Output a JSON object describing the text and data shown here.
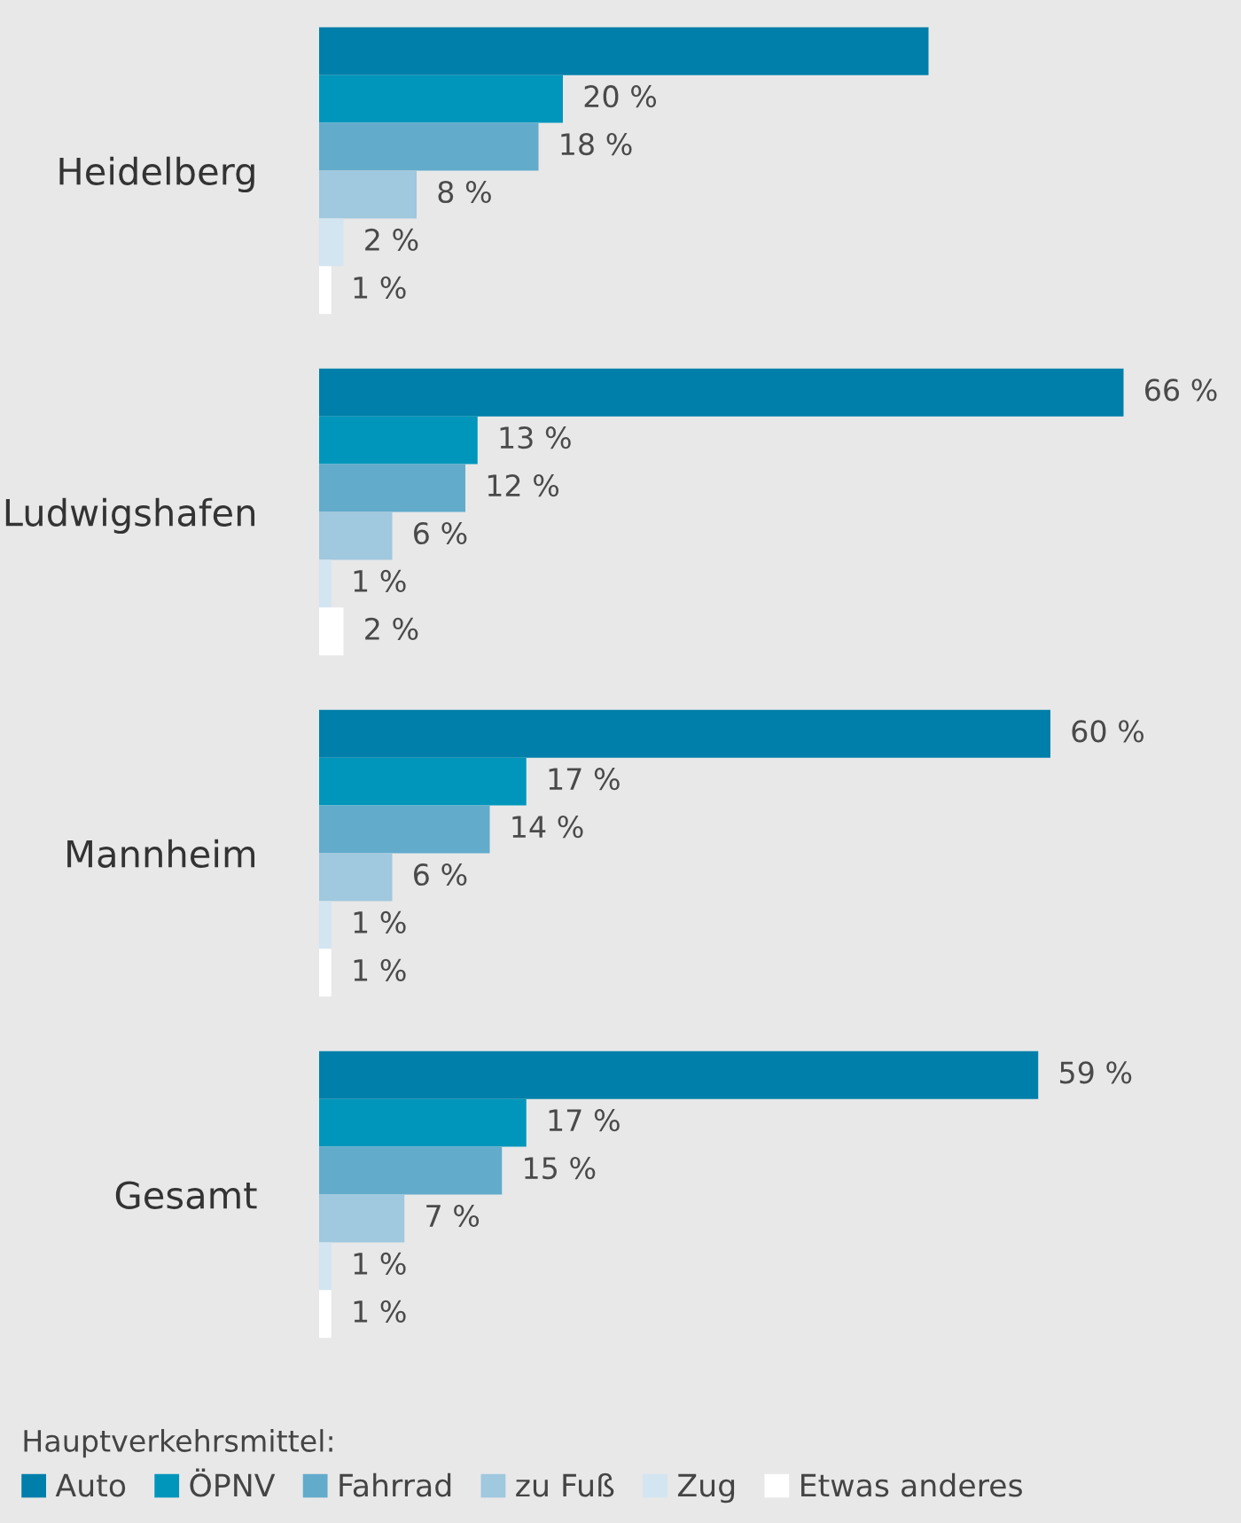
{
  "chart_data": {
    "type": "bar",
    "orientation": "horizontal",
    "categories": [
      "Heidelberg",
      "Ludwigshafen",
      "Mannheim",
      "Gesamt"
    ],
    "legend": "bottom",
    "legend_title": "Hauptverkehrsmittel:",
    "grid": false,
    "series": [
      {
        "name": "Auto",
        "color": "#007faa",
        "values": [
          50,
          66,
          60,
          59
        ],
        "value_labels": [
          null,
          "66 %",
          "60 %",
          "59 %"
        ]
      },
      {
        "name": "ÖPNV",
        "color": "#0096bb",
        "values": [
          20,
          13,
          17,
          17
        ],
        "value_labels": [
          "20 %",
          "13 %",
          "17 %",
          "17 %"
        ]
      },
      {
        "name": "Fahrrad",
        "color": "#62abcb",
        "values": [
          18,
          12,
          14,
          15
        ],
        "value_labels": [
          "18 %",
          "12 %",
          "14 %",
          "15 %"
        ]
      },
      {
        "name": "zu Fuß",
        "color": "#a0c8de",
        "values": [
          8,
          6,
          6,
          7
        ],
        "value_labels": [
          "8 %",
          "6 %",
          "6 %",
          "7 %"
        ]
      },
      {
        "name": "Zug",
        "color": "#d3e5f1",
        "values": [
          2,
          1,
          1,
          1
        ],
        "value_labels": [
          "2 %",
          "1 %",
          "1 %",
          "1 %"
        ]
      },
      {
        "name": "Etwas anderes",
        "color": "#ffffff",
        "values": [
          1,
          2,
          1,
          1
        ],
        "value_labels": [
          "1 %",
          "2 %",
          "1 %",
          "1 %"
        ]
      }
    ]
  }
}
